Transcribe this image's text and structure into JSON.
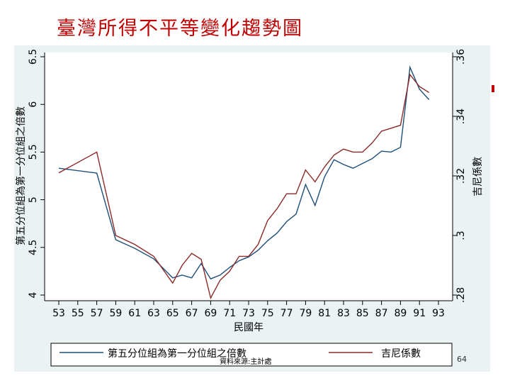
{
  "title": "臺灣所得不平等變化趨勢圖",
  "page_number": "64",
  "colors": {
    "title": "#c00000",
    "panel_bg": "#eaf2f3",
    "series1": "#1f4e79",
    "series2": "#8b2a2a"
  },
  "chart_data": {
    "type": "line",
    "xlabel": "民國年",
    "ylabel_left": "第五分位組為第一分位組之倍數",
    "ylabel_right": "吉尼係數",
    "x_ticks": [
      53,
      55,
      57,
      59,
      61,
      63,
      65,
      67,
      69,
      71,
      73,
      75,
      77,
      79,
      81,
      83,
      85,
      87,
      89,
      91,
      93
    ],
    "y_left_ticks": [
      "4",
      "4.5",
      "5",
      "5.5",
      "6",
      "6.5"
    ],
    "y_right_ticks": [
      ".28",
      ".3",
      ".32",
      ".34",
      ".36"
    ],
    "ylim_left": [
      4,
      6.5
    ],
    "ylim_right": [
      0.28,
      0.36
    ],
    "xlim": [
      53,
      93
    ],
    "grid": false,
    "legend_position": "bottom",
    "legend_note": "資料來源:主計處",
    "series": [
      {
        "name": "第五分位組為第一分位組之倍數",
        "axis": "left",
        "x": [
          53,
          57,
          59,
          61,
          63,
          65,
          66,
          67,
          68,
          69,
          70,
          71,
          72,
          73,
          74,
          75,
          76,
          77,
          78,
          79,
          80,
          81,
          82,
          83,
          84,
          85,
          86,
          87,
          88,
          89,
          90,
          91,
          92
        ],
        "values": [
          5.33,
          5.28,
          4.58,
          4.49,
          4.38,
          4.18,
          4.21,
          4.18,
          4.33,
          4.17,
          4.21,
          4.29,
          4.36,
          4.4,
          4.47,
          4.57,
          4.65,
          4.77,
          4.85,
          5.16,
          4.94,
          5.24,
          5.42,
          5.37,
          5.33,
          5.38,
          5.43,
          5.51,
          5.5,
          5.55,
          6.39,
          6.16,
          6.05
        ]
      },
      {
        "name": "吉尼係數",
        "axis": "right",
        "x": [
          53,
          57,
          59,
          61,
          63,
          65,
          66,
          67,
          68,
          69,
          70,
          71,
          72,
          73,
          74,
          75,
          76,
          77,
          78,
          79,
          80,
          81,
          82,
          83,
          84,
          85,
          86,
          87,
          88,
          89,
          90,
          91,
          92
        ],
        "values": [
          0.321,
          0.328,
          0.3,
          0.297,
          0.293,
          0.284,
          0.29,
          0.294,
          0.292,
          0.279,
          0.285,
          0.288,
          0.293,
          0.293,
          0.297,
          0.305,
          0.309,
          0.314,
          0.314,
          0.322,
          0.318,
          0.323,
          0.327,
          0.329,
          0.328,
          0.328,
          0.331,
          0.335,
          0.336,
          0.337,
          0.354,
          0.35,
          0.348
        ]
      }
    ]
  }
}
